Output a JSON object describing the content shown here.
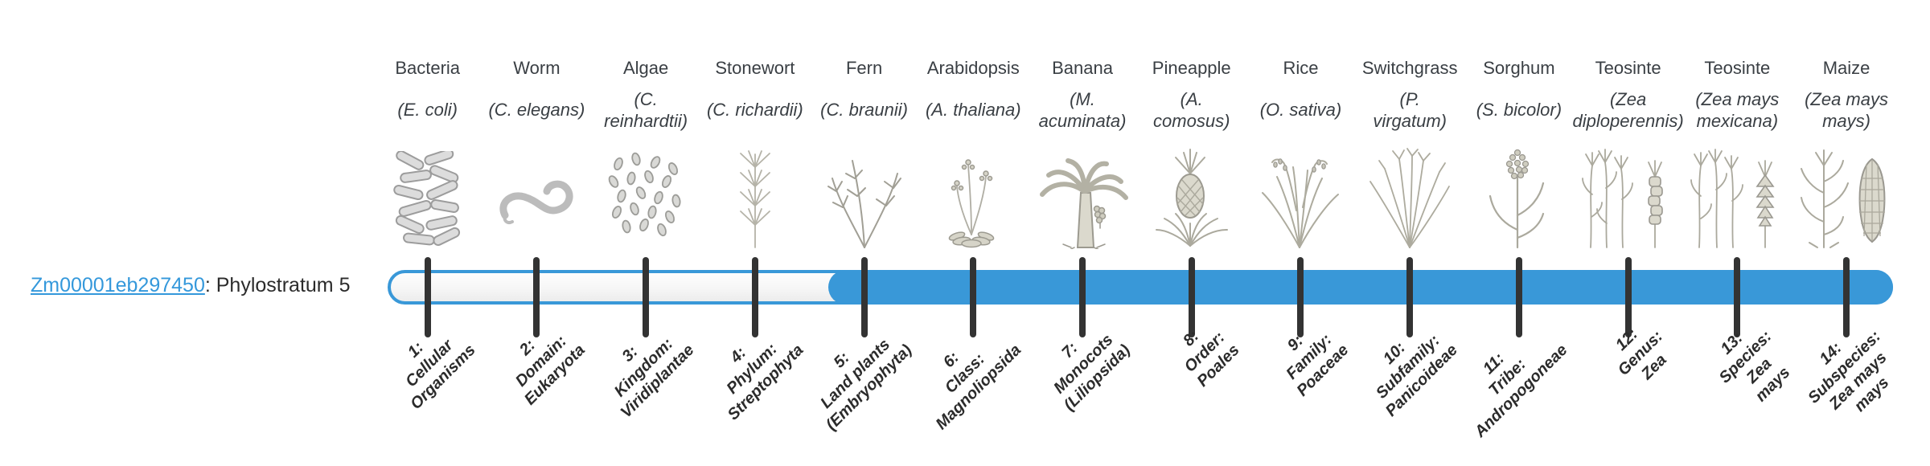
{
  "gene": {
    "id": "Zm00001eb297450",
    "suffix": ": Phylostratum 5",
    "phylostratum": 5
  },
  "track": {
    "total_strata": 14,
    "filled_from_stratum": 5
  },
  "colors": {
    "track_blue": "#3998d8",
    "track_empty": "#f6f6f6",
    "tick": "#333333",
    "link_blue": "#3498db",
    "label_text": "#2b2b2b",
    "organism_text": "#3a3f44",
    "illustration_gray": "#a8a69c"
  },
  "organisms": [
    {
      "common": "Bacteria",
      "scientific": "(E. coli)",
      "icon": "bacteria-illustration"
    },
    {
      "common": "Worm",
      "scientific": "(C. elegans)",
      "icon": "worm-illustration"
    },
    {
      "common": "Algae",
      "scientific": "(C.\nreinhardtii)",
      "icon": "algae-illustration"
    },
    {
      "common": "Stonewort",
      "scientific": "(C. richardii)",
      "icon": "stonewort-illustration"
    },
    {
      "common": "Fern",
      "scientific": "(C. braunii)",
      "icon": "fern-illustration"
    },
    {
      "common": "Arabidopsis",
      "scientific": "(A. thaliana)",
      "icon": "arabidopsis-illustration"
    },
    {
      "common": "Banana",
      "scientific": "(M.\nacuminata)",
      "icon": "banana-illustration"
    },
    {
      "common": "Pineapple",
      "scientific": "(A.\ncomosus)",
      "icon": "pineapple-illustration"
    },
    {
      "common": "Rice",
      "scientific": "(O. sativa)",
      "icon": "rice-illustration"
    },
    {
      "common": "Switchgrass",
      "scientific": "(P.\nvirgatum)",
      "icon": "switchgrass-illustration"
    },
    {
      "common": "Sorghum",
      "scientific": "(S. bicolor)",
      "icon": "sorghum-illustration"
    },
    {
      "common": "Teosinte",
      "scientific": "(Zea\ndiploperennis)",
      "icon": "teosinte-diploperennis-illustration"
    },
    {
      "common": "Teosinte",
      "scientific": "(Zea mays\nmexicana)",
      "icon": "teosinte-mexicana-illustration"
    },
    {
      "common": "Maize",
      "scientific": "(Zea mays\nmays)",
      "icon": "maize-illustration"
    }
  ],
  "phylostrata": [
    {
      "label": "1:\nCellular\nOrganisms"
    },
    {
      "label": "2:\nDomain:\nEukaryota"
    },
    {
      "label": "3:\nKingdom:\nViridiplantae"
    },
    {
      "label": "4:\nPhylum:\nStreptophyta"
    },
    {
      "label": "5:\nLand plants\n(Embryophyta)"
    },
    {
      "label": "6:\nClass:\nMagnoliopsida"
    },
    {
      "label": "7:\nMonocots\n(Liliopsida)"
    },
    {
      "label": "8:\nOrder:\nPoales"
    },
    {
      "label": "9:\nFamily:\nPoaceae"
    },
    {
      "label": "10:\nSubfamily:\nPanicoideae"
    },
    {
      "label": "11:\nTribe:\nAndropogoneae"
    },
    {
      "label": "12:\nGenus:\nZea"
    },
    {
      "label": "13:\nSpecies:\nZea\nmays"
    },
    {
      "label": "14:\nSubspecies:\nZea mays\nmays"
    }
  ]
}
